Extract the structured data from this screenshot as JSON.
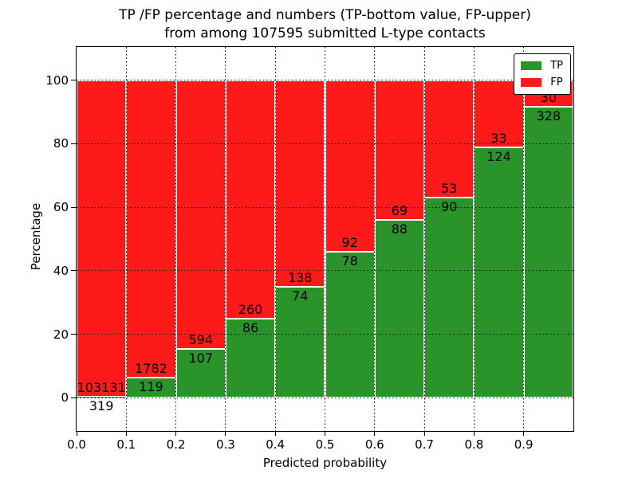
{
  "title": {
    "line1": "TP /FP percentage and numbers (TP-bottom value, FP-upper)",
    "line2": "from among 107595 submitted L-type contacts"
  },
  "chart_data": {
    "type": "bar",
    "stacked": true,
    "normalized_to_percent": true,
    "bin_edges": [
      0.0,
      0.1,
      0.2,
      0.3,
      0.4,
      0.5,
      0.6,
      0.7,
      0.8,
      0.9,
      1.0
    ],
    "series": [
      {
        "name": "TP",
        "color": "#2a932a",
        "counts": [
          319,
          119,
          107,
          86,
          74,
          78,
          88,
          90,
          124,
          328
        ],
        "percent_of_bin": [
          0.31,
          6.26,
          15.26,
          24.86,
          34.91,
          45.88,
          56.05,
          62.94,
          78.98,
          91.62
        ]
      },
      {
        "name": "FP",
        "color": "#ff1a1a",
        "counts": [
          103131,
          1782,
          594,
          260,
          138,
          92,
          69,
          53,
          33,
          30
        ],
        "percent_of_bin": [
          99.69,
          93.74,
          84.74,
          75.14,
          65.09,
          54.12,
          43.95,
          37.06,
          21.02,
          8.38
        ]
      }
    ],
    "xlabel": "Predicted probability",
    "ylabel": "Percentage",
    "x_ticks": [
      "0.0",
      "0.1",
      "0.2",
      "0.3",
      "0.4",
      "0.5",
      "0.6",
      "0.7",
      "0.8",
      "0.9"
    ],
    "y_ticks": [
      0,
      20,
      40,
      60,
      80,
      100
    ],
    "xlim": [
      0.0,
      1.0
    ],
    "ylim": [
      -10.5,
      110.5
    ],
    "grid": "dotted",
    "legend": {
      "position": "upper-right",
      "entries": [
        {
          "label": "TP",
          "color": "#2a932a"
        },
        {
          "label": "FP",
          "color": "#ff1a1a"
        }
      ]
    }
  }
}
